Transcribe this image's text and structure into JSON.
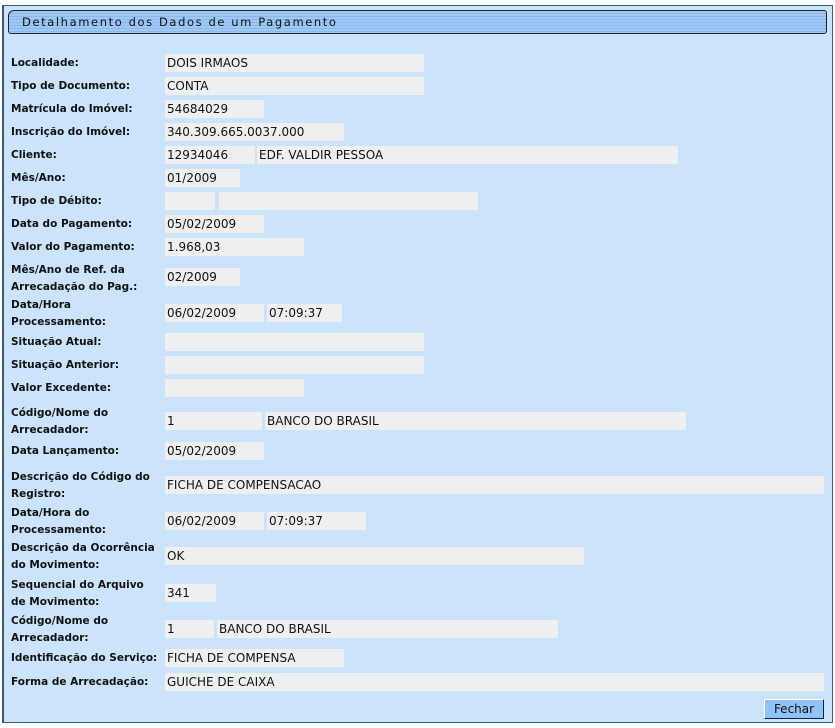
{
  "title": "Detalhamento dos Dados de um Pagamento",
  "fields": {
    "localidade": {
      "label": "Localidade:",
      "value": "DOIS IRMAOS"
    },
    "tipo_documento": {
      "label": "Tipo de Documento:",
      "value": "CONTA"
    },
    "matricula": {
      "label": "Matrícula do Imóvel:",
      "value": "54684029"
    },
    "inscricao": {
      "label": "Inscrição do Imóvel:",
      "value": "340.309.665.0037.000"
    },
    "cliente": {
      "label": "Cliente:",
      "codigo": "12934046",
      "nome": "EDF. VALDIR PESSOA"
    },
    "mes_ano": {
      "label": "Mês/Ano:",
      "value": "01/2009"
    },
    "tipo_debito": {
      "label": "Tipo de Débito:",
      "codigo": "",
      "descricao": ""
    },
    "data_pagamento": {
      "label": "Data do Pagamento:",
      "value": "05/02/2009"
    },
    "valor_pagamento": {
      "label": "Valor do Pagamento:",
      "value": "1.968,03"
    },
    "mes_ano_ref": {
      "label": "Mês/Ano de Ref. da Arrecadação do Pag.:",
      "value": "02/2009"
    },
    "data_hora_proc": {
      "label": "Data/Hora Processamento:",
      "data": "06/02/2009",
      "hora": "07:09:37"
    },
    "situacao_atual": {
      "label": "Situação Atual:",
      "value": ""
    },
    "situacao_anterior": {
      "label": "Situação Anterior:",
      "value": ""
    },
    "valor_excedente": {
      "label": "Valor Excedente:",
      "value": ""
    },
    "arrecadador": {
      "label": "Código/Nome do Arrecadador:",
      "codigo": "1",
      "nome": "BANCO DO BRASIL"
    },
    "data_lancamento": {
      "label": "Data Lançamento:",
      "value": "05/02/2009"
    },
    "descricao_codigo_registro": {
      "label": "Descrição do Código do Registro:",
      "value": "FICHA DE COMPENSACAO"
    },
    "data_hora_do_proc": {
      "label": "Data/Hora do Processamento:",
      "data": "06/02/2009",
      "hora": "07:09:37"
    },
    "descricao_ocorrencia": {
      "label": "Descrição da Ocorrência do Movimento:",
      "value": "OK"
    },
    "sequencial": {
      "label": "Sequencial do Arquivo de Movimento:",
      "value": "341"
    },
    "arrecadador2": {
      "label": "Código/Nome do Arrecadador:",
      "codigo": "1",
      "nome": "BANCO DO BRASIL"
    },
    "identificacao_servico": {
      "label": "Identificação do Serviço:",
      "value": "FICHA DE COMPENSA"
    },
    "forma_arrecadacao": {
      "label": "Forma de Arrecadação:",
      "value": "GUICHE DE CAIXA"
    }
  },
  "buttons": {
    "fechar": "Fechar"
  },
  "colors": {
    "background": "#cbe4fc",
    "field": "#efefef",
    "button": "#90c4f8"
  }
}
